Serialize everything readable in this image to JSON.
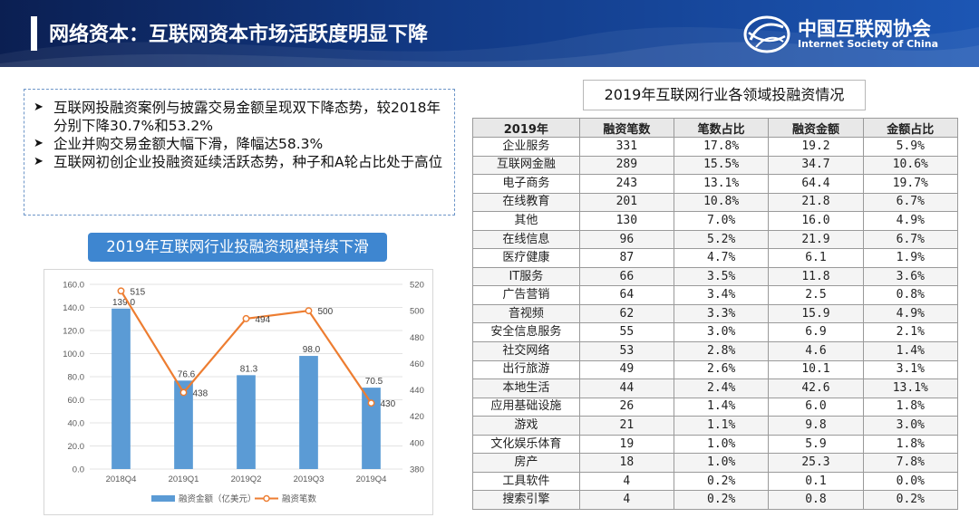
{
  "header": {
    "title": "网络资本：互联网资本市场活跃度明显下降",
    "logo_cn": "中国互联网协会",
    "logo_en": "Internet Society of China"
  },
  "bullets": [
    "互联网投融资案例与披露交易金额呈现双下降态势，较2018年分别下降30.7%和53.2%",
    "企业并购交易金额大幅下滑，降幅达58.3%",
    "互联网初创企业投融资延续活跃态势，种子和A轮占比处于高位"
  ],
  "chart_banner": "2019年互联网行业投融资规模持续下滑",
  "chart_data": {
    "type": "bar",
    "title": "2019年互联网行业投融资规模持续下滑",
    "categories": [
      "2018Q4",
      "2019Q1",
      "2019Q2",
      "2019Q3",
      "2019Q4"
    ],
    "series": [
      {
        "name": "融资金额（亿美元）",
        "type": "bar",
        "axis": "left",
        "values": [
          139.0,
          76.6,
          81.3,
          98.0,
          70.5
        ],
        "labels": [
          "139.0",
          "76.6",
          "81.3",
          "98.0",
          "70.5"
        ]
      },
      {
        "name": "融资笔数",
        "type": "line",
        "axis": "right",
        "values": [
          515,
          438,
          494,
          500,
          430
        ],
        "labels": [
          "515",
          "438",
          "494",
          "500",
          "430"
        ]
      }
    ],
    "y_left": {
      "min": 0,
      "max": 160,
      "ticks": [
        "0.0",
        "20.0",
        "40.0",
        "60.0",
        "80.0",
        "100.0",
        "120.0",
        "140.0",
        "160.0"
      ]
    },
    "y_right": {
      "min": 380,
      "max": 520,
      "ticks": [
        "380",
        "400",
        "420",
        "440",
        "460",
        "480",
        "500",
        "520"
      ]
    },
    "legend_position": "bottom",
    "colors": {
      "bar": "#5b9bd5",
      "line": "#ed7d31"
    }
  },
  "table": {
    "title": "2019年互联网行业各领域投融资情况",
    "headers": [
      "2019年",
      "融资笔数",
      "笔数占比",
      "融资金额",
      "金额占比"
    ],
    "rows": [
      [
        "企业服务",
        "331",
        "17.8%",
        "19.2",
        "5.9%"
      ],
      [
        "互联网金融",
        "289",
        "15.5%",
        "34.7",
        "10.6%"
      ],
      [
        "电子商务",
        "243",
        "13.1%",
        "64.4",
        "19.7%"
      ],
      [
        "在线教育",
        "201",
        "10.8%",
        "21.8",
        "6.7%"
      ],
      [
        "其他",
        "130",
        "7.0%",
        "16.0",
        "4.9%"
      ],
      [
        "在线信息",
        "96",
        "5.2%",
        "21.9",
        "6.7%"
      ],
      [
        "医疗健康",
        "87",
        "4.7%",
        "6.1",
        "1.9%"
      ],
      [
        "IT服务",
        "66",
        "3.5%",
        "11.8",
        "3.6%"
      ],
      [
        "广告营销",
        "64",
        "3.4%",
        "2.5",
        "0.8%"
      ],
      [
        "音视频",
        "62",
        "3.3%",
        "15.9",
        "4.9%"
      ],
      [
        "安全信息服务",
        "55",
        "3.0%",
        "6.9",
        "2.1%"
      ],
      [
        "社交网络",
        "53",
        "2.8%",
        "4.6",
        "1.4%"
      ],
      [
        "出行旅游",
        "49",
        "2.6%",
        "10.1",
        "3.1%"
      ],
      [
        "本地生活",
        "44",
        "2.4%",
        "42.6",
        "13.1%"
      ],
      [
        "应用基础设施",
        "26",
        "1.4%",
        "6.0",
        "1.8%"
      ],
      [
        "游戏",
        "21",
        "1.1%",
        "9.8",
        "3.0%"
      ],
      [
        "文化娱乐体育",
        "19",
        "1.0%",
        "5.9",
        "1.8%"
      ],
      [
        "房产",
        "18",
        "1.0%",
        "25.3",
        "7.8%"
      ],
      [
        "工具软件",
        "4",
        "0.2%",
        "0.1",
        "0.0%"
      ],
      [
        "搜索引擎",
        "4",
        "0.2%",
        "0.8",
        "0.2%"
      ]
    ]
  }
}
